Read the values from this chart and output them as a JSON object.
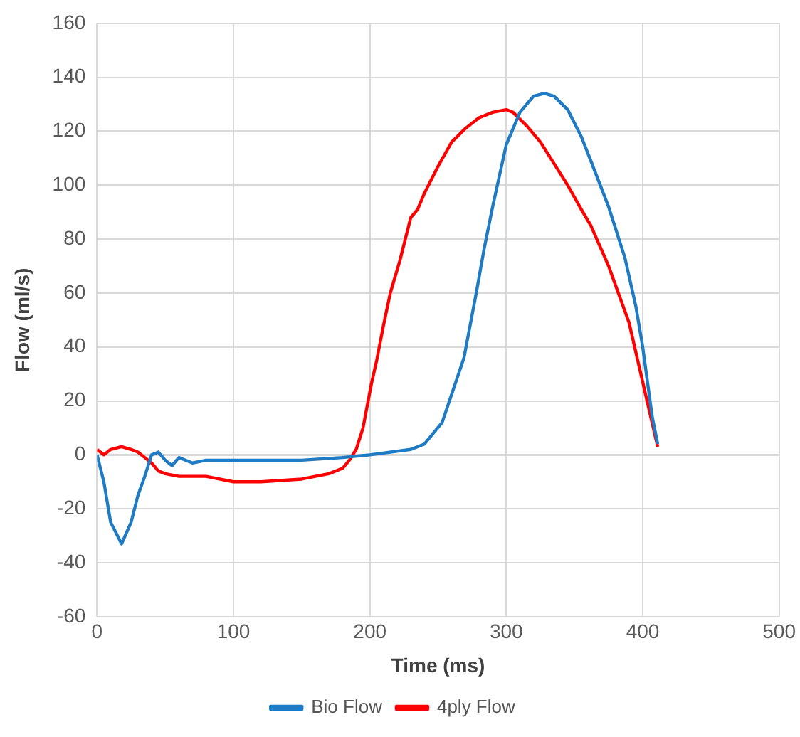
{
  "chart_data": {
    "type": "line",
    "xlabel": "Time (ms)",
    "ylabel": "Flow (ml/s)",
    "xlim": [
      0,
      500
    ],
    "xticks": [
      0,
      100,
      200,
      300,
      400,
      500
    ],
    "ylim": [
      -60,
      160
    ],
    "yticks": [
      -60,
      -40,
      -20,
      0,
      20,
      40,
      60,
      80,
      100,
      120,
      140,
      160
    ],
    "grid": true,
    "legend": "bottom",
    "marker": "none",
    "line_style": "solid",
    "series": [
      {
        "name": "Bio Flow",
        "color": "#1f7bc4",
        "x": [
          0,
          5,
          10,
          18,
          25,
          30,
          35,
          40,
          45,
          50,
          55,
          60,
          65,
          70,
          80,
          100,
          150,
          180,
          200,
          230,
          240,
          253,
          269,
          278,
          284,
          290,
          300,
          310,
          320,
          328,
          335,
          345,
          355,
          362,
          375,
          387,
          395,
          400,
          407,
          411
        ],
        "values": [
          0,
          -10,
          -25,
          -33,
          -25,
          -15,
          -8,
          0,
          1,
          -2,
          -4,
          -1,
          -2,
          -3,
          -2,
          -2,
          -2,
          -1,
          0,
          2,
          4,
          12,
          36,
          60,
          77,
          92,
          115,
          127,
          133,
          134,
          133,
          128,
          118,
          109,
          92,
          73,
          55,
          40,
          14,
          4
        ]
      },
      {
        "name": "4ply Flow",
        "color": "#ff0000",
        "x": [
          0,
          5,
          10,
          18,
          25,
          30,
          35,
          40,
          45,
          50,
          60,
          80,
          100,
          120,
          150,
          170,
          180,
          185,
          190,
          195,
          201,
          205,
          210,
          215,
          222,
          230,
          235,
          240,
          250,
          260,
          270,
          280,
          290,
          300,
          305,
          315,
          325,
          335,
          345,
          355,
          362,
          375,
          390,
          400,
          405,
          411
        ],
        "values": [
          2,
          0,
          2,
          3,
          2,
          1,
          -1,
          -3,
          -6,
          -7,
          -8,
          -8,
          -10,
          -10,
          -9,
          -7,
          -5,
          -2,
          2,
          10,
          26,
          35,
          48,
          60,
          72,
          88,
          91,
          97,
          107,
          116,
          121,
          125,
          127,
          128,
          127,
          122,
          116,
          108,
          100,
          91,
          85,
          70,
          49,
          27,
          16,
          3
        ]
      }
    ]
  }
}
